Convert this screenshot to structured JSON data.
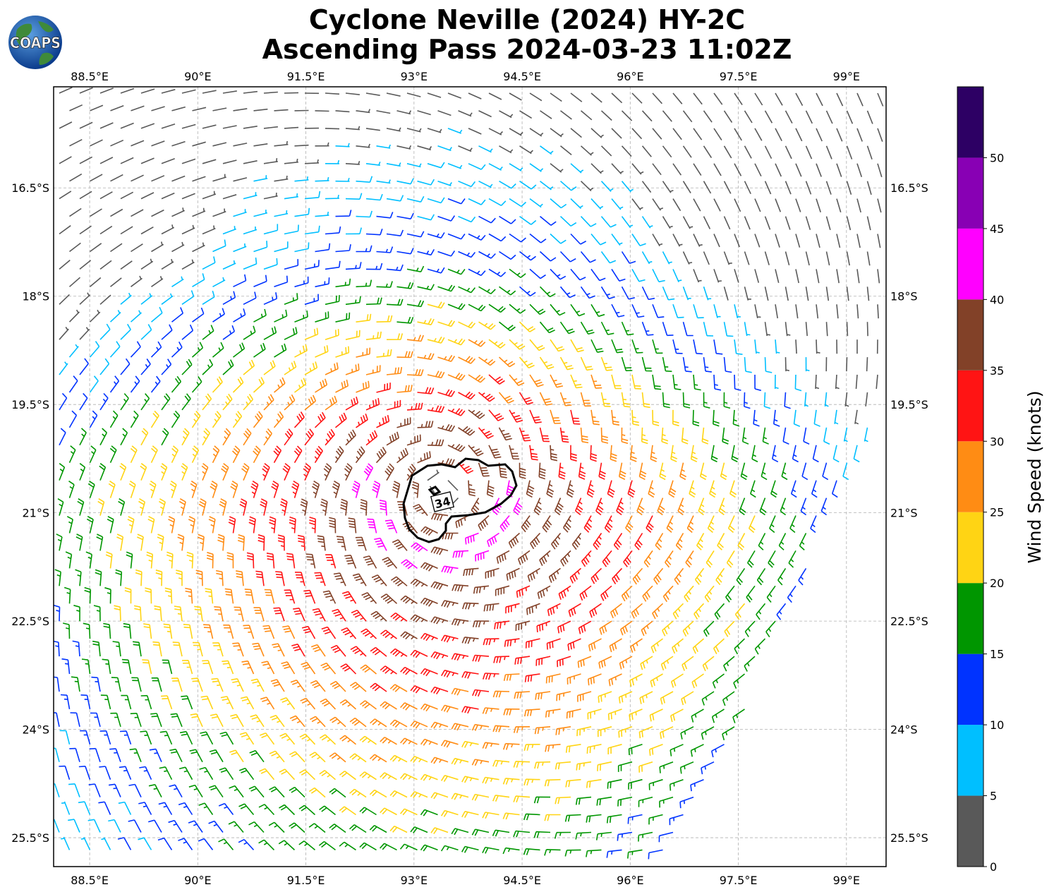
{
  "title_line1": "Cyclone Neville (2024) HY-2C",
  "title_line2": "Ascending Pass 2024-03-23 11:02Z",
  "logo_text": "COAPS",
  "map": {
    "lon_ticks": [
      "88.5°E",
      "90°E",
      "91.5°E",
      "93°E",
      "94.5°E",
      "96°E",
      "97.5°E",
      "99°E"
    ],
    "lon_values": [
      88.5,
      90,
      91.5,
      93,
      94.5,
      96,
      97.5,
      99
    ],
    "lat_ticks": [
      "16.5°S",
      "18°S",
      "19.5°S",
      "21°S",
      "22.5°S",
      "24°S",
      "25.5°S"
    ],
    "lat_values": [
      -16.5,
      -18,
      -19.5,
      -21,
      -22.5,
      -24,
      -25.5
    ],
    "lon_range": [
      88.0,
      99.55
    ],
    "lat_range": [
      -15.1,
      -25.9
    ],
    "storm_center": {
      "lon": 93.4,
      "lat": -20.7
    },
    "contour_label": "34",
    "grid": true
  },
  "colorbar": {
    "label": "Wind Speed (knots)",
    "tick_labels": [
      "0",
      "5",
      "10",
      "15",
      "20",
      "25",
      "30",
      "35",
      "40",
      "45",
      "50"
    ],
    "bins": [
      {
        "min": 0,
        "max": 5,
        "color": "#595959"
      },
      {
        "min": 5,
        "max": 10,
        "color": "#00bfff"
      },
      {
        "min": 10,
        "max": 15,
        "color": "#0033ff"
      },
      {
        "min": 15,
        "max": 20,
        "color": "#009600"
      },
      {
        "min": 20,
        "max": 25,
        "color": "#ffd414"
      },
      {
        "min": 25,
        "max": 30,
        "color": "#ff8c14"
      },
      {
        "min": 30,
        "max": 35,
        "color": "#ff1414"
      },
      {
        "min": 35,
        "max": 40,
        "color": "#824128"
      },
      {
        "min": 40,
        "max": 45,
        "color": "#ff00ff"
      },
      {
        "min": 45,
        "max": 50,
        "color": "#8800b4"
      },
      {
        "min": 50,
        "max": 55,
        "color": "#2d0064"
      }
    ]
  }
}
